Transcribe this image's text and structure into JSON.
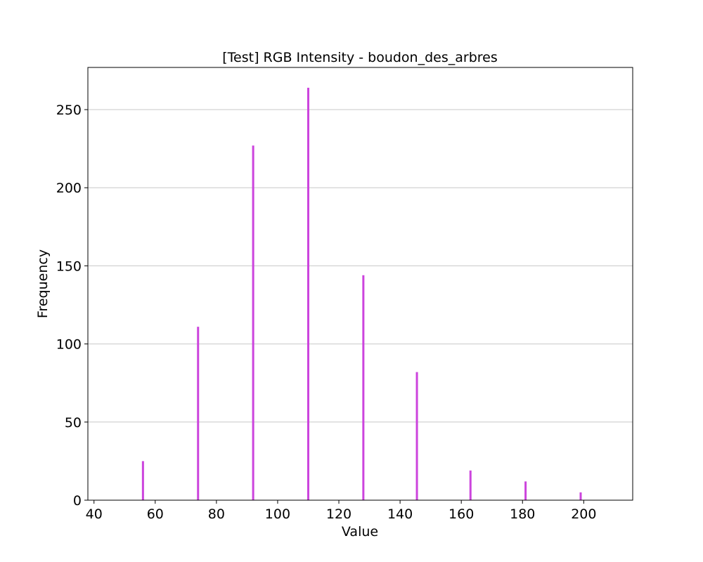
{
  "chart_data": {
    "type": "bar",
    "title": "[Test] RGB Intensity - boudon_des_arbres",
    "xlabel": "Value",
    "ylabel": "Frequency",
    "xlim": [
      38,
      216
    ],
    "ylim": [
      0,
      277
    ],
    "x_ticks": [
      40,
      60,
      80,
      100,
      120,
      140,
      160,
      180,
      200
    ],
    "y_ticks": [
      0,
      50,
      100,
      150,
      200,
      250
    ],
    "grid": "y-major",
    "bar_color": "#cc44dd",
    "series": [
      {
        "x": [
          56,
          74,
          92,
          110,
          128,
          145.5,
          163,
          181,
          199
        ],
        "values": [
          25,
          111,
          227,
          264,
          144,
          82,
          19,
          12,
          5
        ]
      }
    ]
  }
}
